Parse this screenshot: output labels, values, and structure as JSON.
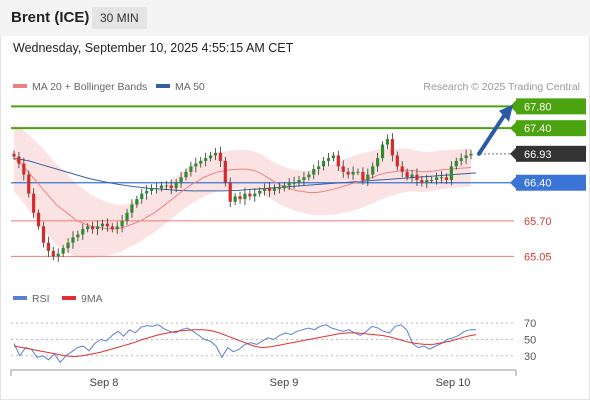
{
  "header": {
    "instrument": "Brent (ICE)",
    "timeframe": "30 MIN"
  },
  "timestamp": "Wednesday, September 10, 2025 4:55:15 AM CET",
  "credit": "Research © 2025 Trading Central",
  "colors": {
    "bull": "#2e8b2e",
    "bear": "#d42a2a",
    "ma20": "#f08080",
    "band": "#fbd9d9",
    "ma50": "#3a5f9e",
    "support": "#3a74d6",
    "resistance": "#f07878",
    "target": "#4aa30f",
    "arrow": "#2a5aa8",
    "rsi": "#5b7fd6",
    "rsi_ma": "#e03030"
  },
  "chart_data": [
    {
      "type": "line",
      "title": "",
      "legend": [
        {
          "name": "MA 20 + Bollinger Bands",
          "key": "ma20"
        },
        {
          "name": "MA 50",
          "key": "ma50"
        }
      ],
      "x_ticks": [
        "Sep 8",
        "Sep 9",
        "Sep 10"
      ],
      "ylim": [
        64.8,
        68.1
      ],
      "price_close": [
        66.88,
        66.75,
        66.55,
        66.2,
        65.85,
        65.6,
        65.3,
        65.15,
        65.05,
        65.1,
        65.2,
        65.3,
        65.4,
        65.45,
        65.55,
        65.6,
        65.55,
        65.6,
        65.65,
        65.6,
        65.55,
        65.6,
        65.7,
        65.85,
        66.0,
        66.1,
        66.2,
        66.25,
        66.3,
        66.3,
        66.35,
        66.35,
        66.3,
        66.4,
        66.5,
        66.6,
        66.7,
        66.75,
        66.8,
        66.85,
        66.9,
        66.95,
        66.8,
        66.4,
        66.05,
        66.15,
        66.1,
        66.2,
        66.15,
        66.2,
        66.25,
        66.3,
        66.25,
        66.3,
        66.3,
        66.35,
        66.4,
        66.4,
        66.45,
        66.5,
        66.55,
        66.65,
        66.7,
        66.8,
        66.85,
        66.9,
        66.7,
        66.6,
        66.55,
        66.6,
        66.6,
        66.45,
        66.55,
        66.7,
        66.85,
        67.1,
        67.2,
        66.9,
        66.7,
        66.6,
        66.5,
        66.55,
        66.45,
        66.4,
        66.45,
        66.45,
        66.5,
        66.5,
        66.45,
        66.7,
        66.8,
        66.85,
        66.9,
        66.93
      ],
      "ma20": [
        66.85,
        66.75,
        66.6,
        66.45,
        66.3,
        66.15,
        66.0,
        65.9,
        65.8,
        65.7,
        65.65,
        65.6,
        65.58,
        65.56,
        65.55,
        65.56,
        65.6,
        65.65,
        65.7,
        65.78,
        65.85,
        65.95,
        66.05,
        66.15,
        66.25,
        66.35,
        66.42,
        66.5,
        66.55,
        66.6,
        66.62,
        66.64,
        66.65,
        66.65,
        66.63,
        66.58,
        66.5,
        66.42,
        66.35,
        66.3,
        66.26,
        66.24,
        66.22,
        66.22,
        66.24,
        66.27,
        66.3,
        66.34,
        66.38,
        66.42,
        66.46,
        66.5,
        66.55,
        66.58,
        66.6,
        66.62,
        66.63,
        66.62,
        66.6,
        66.6,
        66.62,
        66.64,
        66.65,
        66.66,
        66.67,
        66.68
      ],
      "ma50": [
        66.85,
        66.8,
        66.72,
        66.64,
        66.56,
        66.48,
        66.42,
        66.37,
        66.33,
        66.3,
        66.28,
        66.26,
        66.25,
        66.25,
        66.25,
        66.26,
        66.28,
        66.3,
        66.32,
        66.34,
        66.36,
        66.38,
        66.4,
        66.42,
        66.44,
        66.46,
        66.48,
        66.5,
        66.52,
        66.54,
        66.56,
        66.58
      ],
      "levels": [
        {
          "value": 67.8,
          "label": "67.80",
          "kind": "target"
        },
        {
          "value": 67.4,
          "label": "67.40",
          "kind": "target"
        },
        {
          "value": 66.93,
          "label": "66.93",
          "kind": "last"
        },
        {
          "value": 66.4,
          "label": "66.40",
          "kind": "pivot"
        },
        {
          "value": 65.7,
          "label": "65.70",
          "kind": "support"
        },
        {
          "value": 65.05,
          "label": "65.05",
          "kind": "support"
        }
      ]
    },
    {
      "type": "line",
      "title": "",
      "legend": [
        {
          "name": "RSI",
          "key": "rsi"
        },
        {
          "name": "9MA",
          "key": "rsi_ma"
        }
      ],
      "y_ticks": [
        70,
        50,
        30
      ],
      "ylim": [
        15,
        80
      ],
      "rsi": [
        45,
        30,
        40,
        38,
        28,
        30,
        25,
        32,
        22,
        30,
        35,
        40,
        42,
        36,
        45,
        50,
        48,
        55,
        60,
        54,
        62,
        58,
        65,
        67,
        66,
        68,
        63,
        60,
        58,
        62,
        64,
        60,
        55,
        50,
        48,
        42,
        28,
        40,
        35,
        38,
        44,
        46,
        44,
        48,
        52,
        50,
        55,
        58,
        56,
        60,
        62,
        64,
        62,
        66,
        68,
        64,
        62,
        60,
        62,
        58,
        55,
        60,
        66,
        64,
        60,
        58,
        66,
        68,
        62,
        45,
        40,
        42,
        38,
        42,
        45,
        50,
        52,
        55,
        60,
        62,
        62
      ],
      "rsi_ma": [
        42,
        40,
        38,
        36,
        34,
        32,
        30,
        29,
        30,
        32,
        34,
        37,
        40,
        43,
        46,
        50,
        53,
        56,
        58,
        60,
        61,
        62,
        62,
        61,
        58,
        54,
        50,
        46,
        42,
        40,
        41,
        43,
        45,
        47,
        49,
        51,
        53,
        55,
        57,
        58,
        58,
        57,
        56,
        55,
        53,
        50,
        47,
        45,
        44,
        44,
        46,
        48,
        51,
        54,
        56
      ]
    }
  ]
}
